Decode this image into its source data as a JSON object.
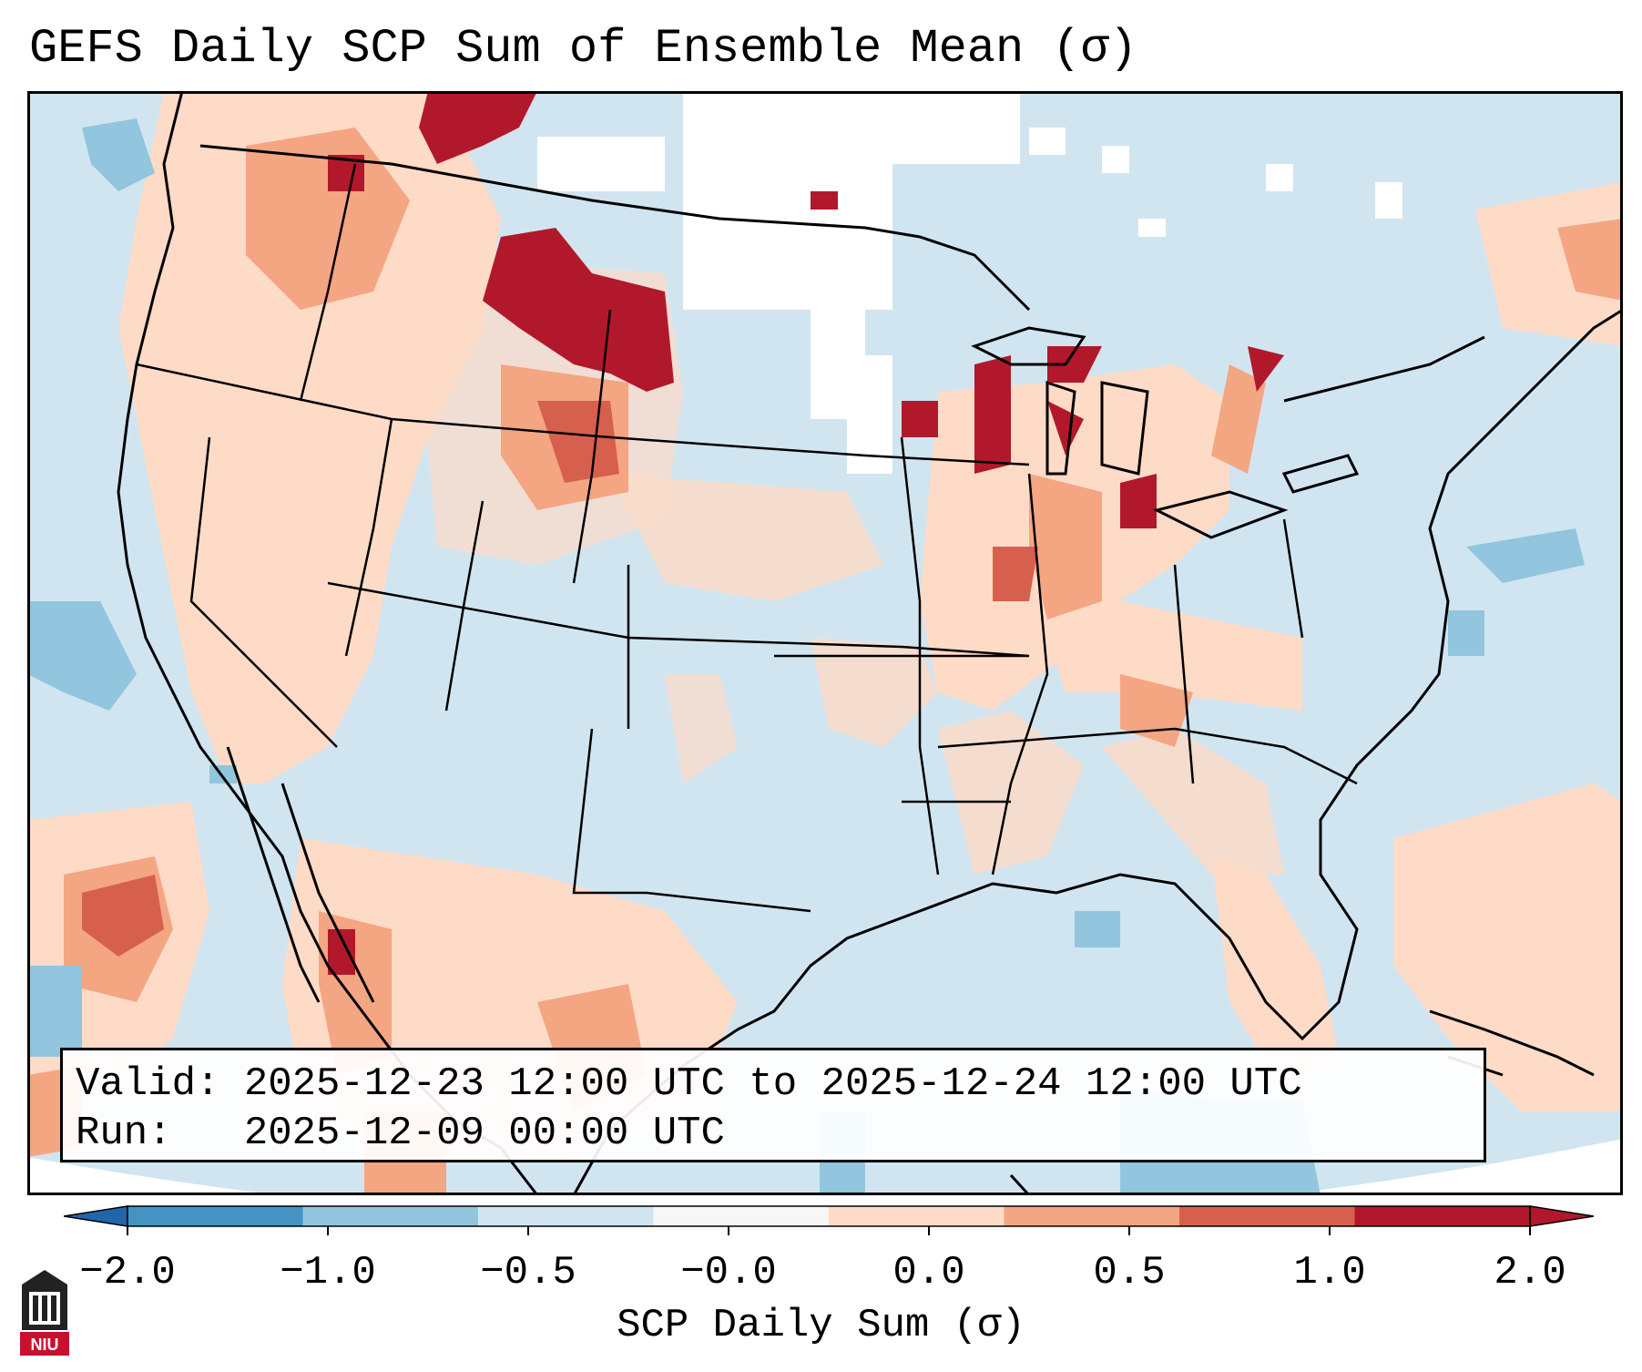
{
  "title": "GEFS Daily SCP Sum of Ensemble Mean (σ)",
  "info": {
    "valid_label": "Valid:",
    "valid_value": "2025-12-23 12:00 UTC to 2025-12-24 12:00 UTC",
    "run_label": "Run:",
    "run_value": "2025-12-09 00:00 UTC"
  },
  "colorbar": {
    "label": "SCP Daily Sum (σ)",
    "ticks": [
      "−2.0",
      "−1.0",
      "−0.5",
      "−0.0",
      "0.0",
      "0.5",
      "1.0",
      "2.0"
    ],
    "colors": [
      "#4393c3",
      "#92c5de",
      "#d1e5f0",
      "#f7f7f7",
      "#fddbc7",
      "#f4a582",
      "#d6604d",
      "#b2182b"
    ],
    "under_color": "#2166ac",
    "over_color": "#b2182b"
  },
  "map": {
    "ocean_color": "#d1e5f0",
    "border_color": "#000000"
  },
  "logo": {
    "text": "NIU"
  }
}
